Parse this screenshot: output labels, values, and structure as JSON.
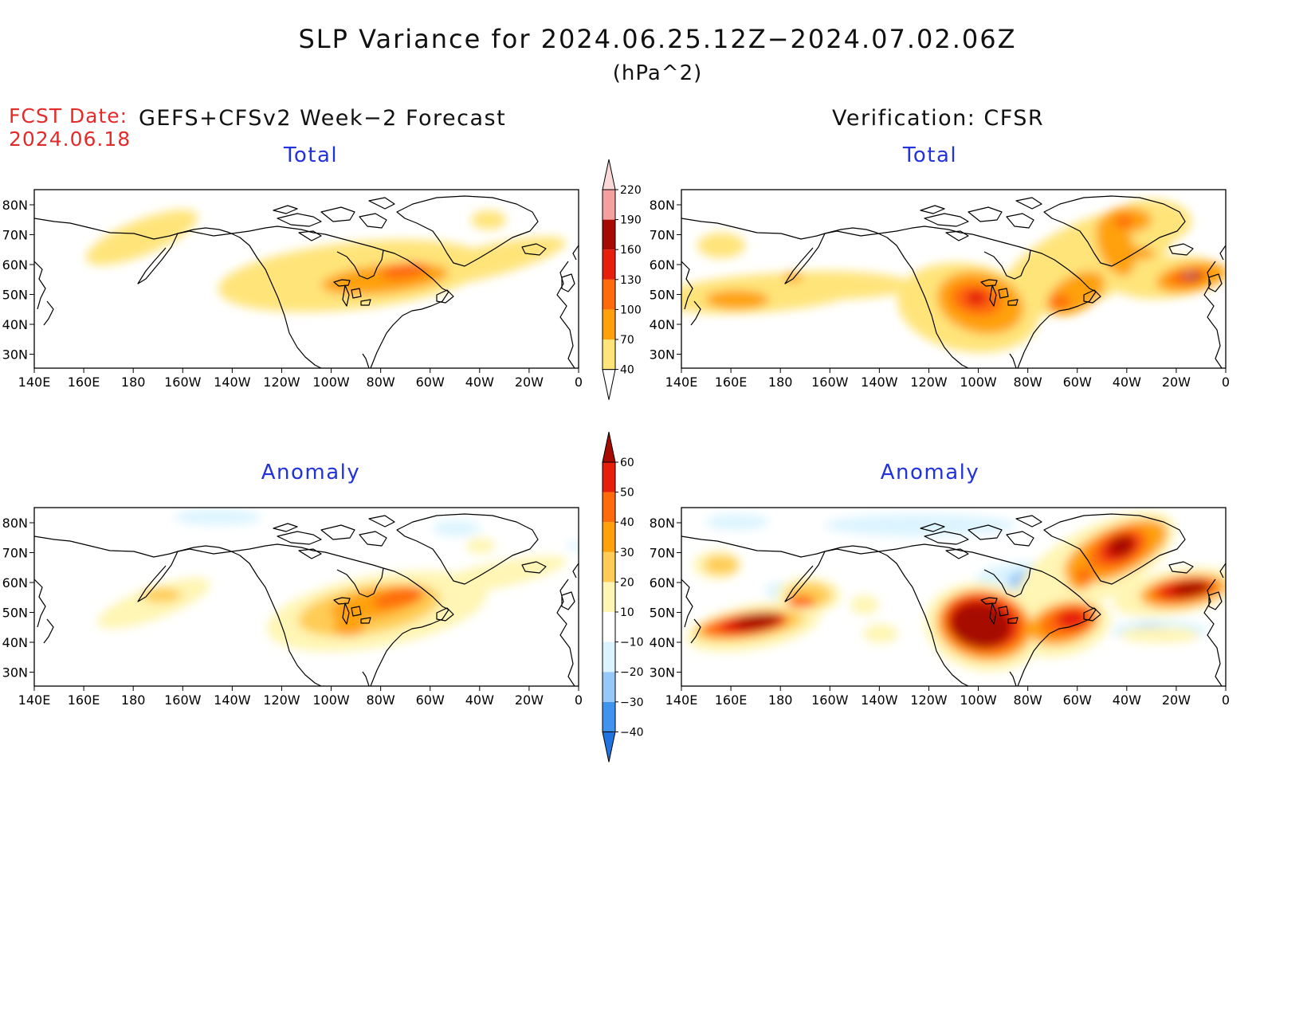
{
  "title": "SLP Variance for 2024.06.25.12Z−2024.07.02.06Z",
  "units": "(hPa^2)",
  "fcst_date_label": "FCST Date:",
  "fcst_date_value": "2024.06.18",
  "forecast_header": "GEFS+CFSv2 Week−2 Forecast",
  "verification_header": "Verification: CFSR",
  "panels": [
    {
      "id": "fcst-total",
      "subtitle": "Total"
    },
    {
      "id": "verif-total",
      "subtitle": "Total"
    },
    {
      "id": "fcst-anomaly",
      "subtitle": "Anomaly"
    },
    {
      "id": "verif-anomaly",
      "subtitle": "Anomaly"
    }
  ],
  "lat_labels": [
    "80N",
    "70N",
    "60N",
    "50N",
    "40N",
    "30N"
  ],
  "lon_labels": [
    "140E",
    "160E",
    "180",
    "160W",
    "140W",
    "120W",
    "100W",
    "80W",
    "60W",
    "40W",
    "20W",
    "0"
  ],
  "colorbar_total": {
    "levels": [
      "40",
      "70",
      "100",
      "130",
      "160",
      "190",
      "220"
    ],
    "colors": [
      "#ffe47a",
      "#ffa10a",
      "#ff6a0a",
      "#e61e0a",
      "#a60a00",
      "#f4a0a0",
      "#fbd8d8"
    ]
  },
  "colorbar_anomaly": {
    "levels": [
      "−40",
      "−30",
      "−20",
      "−10",
      "10",
      "20",
      "30",
      "40",
      "50",
      "60"
    ],
    "colors": [
      "#1f74e0",
      "#3f94f0",
      "#96c8f8",
      "#dcf4ff",
      "#ffffff",
      "#fff5b4",
      "#ffcc55",
      "#ffa10a",
      "#ff6a0a",
      "#e61e0a",
      "#a60a00"
    ]
  }
}
